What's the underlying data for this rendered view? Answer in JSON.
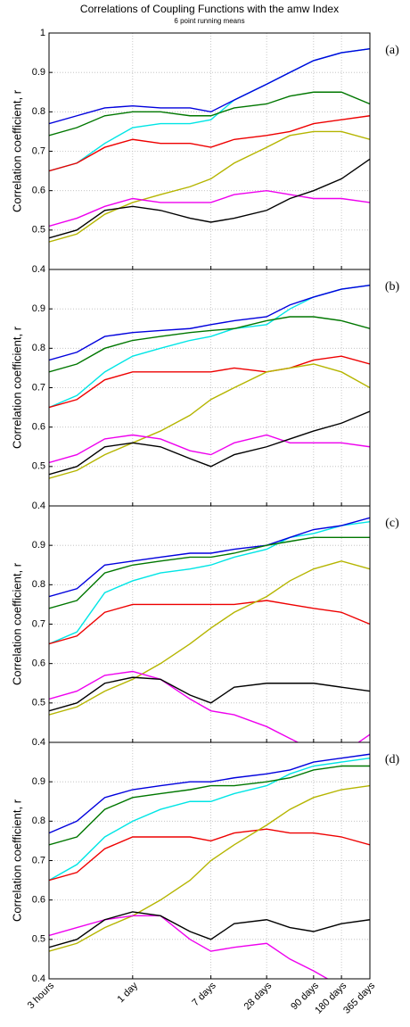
{
  "chart_data": [
    {
      "type": "line",
      "title": "Correlations of Coupling Functions with the amw Index",
      "subtitle": "6 point running means",
      "panel_label": "(a)",
      "ylabel": "Correlation coefficient, r",
      "log_x": true,
      "grid": true,
      "xlim": [
        3,
        8760
      ],
      "xticks": [
        3,
        24,
        168,
        672,
        2160,
        4320,
        8760
      ],
      "ylim": [
        0.4,
        1
      ],
      "yticks": [
        0.4,
        0.5,
        0.6,
        0.7,
        0.8,
        0.9,
        1
      ],
      "x": [
        3,
        6,
        12,
        24,
        48,
        100,
        168,
        300,
        672,
        1200,
        2160,
        4320,
        8760
      ],
      "series": [
        {
          "color": "#00e5e5",
          "values": [
            0.65,
            0.67,
            0.72,
            0.76,
            0.77,
            0.77,
            0.78,
            0.83,
            0.87,
            0.9,
            0.93,
            0.95,
            0.96
          ]
        },
        {
          "color": "#0000dd",
          "values": [
            0.77,
            0.79,
            0.81,
            0.815,
            0.81,
            0.81,
            0.8,
            0.83,
            0.87,
            0.9,
            0.93,
            0.95,
            0.96
          ]
        },
        {
          "color": "#007700",
          "values": [
            0.74,
            0.76,
            0.79,
            0.8,
            0.8,
            0.79,
            0.79,
            0.81,
            0.82,
            0.84,
            0.85,
            0.85,
            0.82
          ]
        },
        {
          "color": "#ee0000",
          "values": [
            0.65,
            0.67,
            0.71,
            0.73,
            0.72,
            0.72,
            0.71,
            0.73,
            0.74,
            0.75,
            0.77,
            0.78,
            0.79
          ]
        },
        {
          "color": "#b5b500",
          "values": [
            0.47,
            0.49,
            0.54,
            0.57,
            0.59,
            0.61,
            0.63,
            0.67,
            0.71,
            0.74,
            0.75,
            0.75,
            0.73
          ]
        },
        {
          "color": "#ee00ee",
          "values": [
            0.51,
            0.53,
            0.56,
            0.58,
            0.57,
            0.57,
            0.57,
            0.59,
            0.6,
            0.59,
            0.58,
            0.58,
            0.57
          ]
        },
        {
          "color": "#000000",
          "values": [
            0.48,
            0.5,
            0.55,
            0.56,
            0.55,
            0.53,
            0.52,
            0.53,
            0.55,
            0.58,
            0.6,
            0.63,
            0.68
          ]
        }
      ]
    },
    {
      "type": "line",
      "panel_label": "(b)",
      "ylabel": "Correlation coefficient, r",
      "log_x": true,
      "grid": true,
      "xlim": [
        3,
        8760
      ],
      "xticks": [
        3,
        24,
        168,
        672,
        2160,
        4320,
        8760
      ],
      "ylim": [
        0.4,
        1
      ],
      "yticks": [
        0.4,
        0.5,
        0.6,
        0.7,
        0.8,
        0.9
      ],
      "x": [
        3,
        6,
        12,
        24,
        48,
        100,
        168,
        300,
        672,
        1200,
        2160,
        4320,
        8760
      ],
      "series": [
        {
          "color": "#00e5e5",
          "values": [
            0.65,
            0.68,
            0.74,
            0.78,
            0.8,
            0.82,
            0.83,
            0.85,
            0.86,
            0.9,
            0.93,
            0.95,
            0.96
          ]
        },
        {
          "color": "#0000dd",
          "values": [
            0.77,
            0.79,
            0.83,
            0.84,
            0.845,
            0.85,
            0.86,
            0.87,
            0.88,
            0.91,
            0.93,
            0.95,
            0.96
          ]
        },
        {
          "color": "#007700",
          "values": [
            0.74,
            0.76,
            0.8,
            0.82,
            0.83,
            0.84,
            0.845,
            0.85,
            0.87,
            0.88,
            0.88,
            0.87,
            0.85
          ]
        },
        {
          "color": "#ee0000",
          "values": [
            0.65,
            0.67,
            0.72,
            0.74,
            0.74,
            0.74,
            0.74,
            0.75,
            0.74,
            0.75,
            0.77,
            0.78,
            0.76
          ]
        },
        {
          "color": "#b5b500",
          "values": [
            0.47,
            0.49,
            0.53,
            0.56,
            0.59,
            0.63,
            0.67,
            0.7,
            0.74,
            0.75,
            0.76,
            0.74,
            0.7
          ]
        },
        {
          "color": "#ee00ee",
          "values": [
            0.51,
            0.53,
            0.57,
            0.58,
            0.57,
            0.54,
            0.53,
            0.56,
            0.58,
            0.56,
            0.56,
            0.56,
            0.55
          ]
        },
        {
          "color": "#000000",
          "values": [
            0.48,
            0.5,
            0.55,
            0.56,
            0.55,
            0.52,
            0.5,
            0.53,
            0.55,
            0.57,
            0.59,
            0.61,
            0.64
          ]
        }
      ]
    },
    {
      "type": "line",
      "panel_label": "(c)",
      "ylabel": "Correlation coefficient, r",
      "log_x": true,
      "grid": true,
      "xlim": [
        3,
        8760
      ],
      "xticks": [
        3,
        24,
        168,
        672,
        2160,
        4320,
        8760
      ],
      "ylim": [
        0.4,
        1
      ],
      "yticks": [
        0.4,
        0.5,
        0.6,
        0.7,
        0.8,
        0.9
      ],
      "x": [
        3,
        6,
        12,
        24,
        48,
        100,
        168,
        300,
        672,
        1200,
        2160,
        4320,
        8760
      ],
      "series": [
        {
          "color": "#00e5e5",
          "values": [
            0.65,
            0.68,
            0.78,
            0.81,
            0.83,
            0.84,
            0.85,
            0.87,
            0.89,
            0.92,
            0.93,
            0.95,
            0.96
          ]
        },
        {
          "color": "#0000dd",
          "values": [
            0.77,
            0.79,
            0.85,
            0.86,
            0.87,
            0.88,
            0.88,
            0.89,
            0.9,
            0.92,
            0.94,
            0.95,
            0.97
          ]
        },
        {
          "color": "#007700",
          "values": [
            0.74,
            0.76,
            0.83,
            0.85,
            0.86,
            0.87,
            0.87,
            0.88,
            0.9,
            0.91,
            0.92,
            0.92,
            0.92
          ]
        },
        {
          "color": "#ee0000",
          "values": [
            0.65,
            0.67,
            0.73,
            0.75,
            0.75,
            0.75,
            0.75,
            0.75,
            0.76,
            0.75,
            0.74,
            0.73,
            0.7
          ]
        },
        {
          "color": "#b5b500",
          "values": [
            0.47,
            0.49,
            0.53,
            0.56,
            0.6,
            0.65,
            0.69,
            0.73,
            0.77,
            0.81,
            0.84,
            0.86,
            0.84
          ]
        },
        {
          "color": "#ee00ee",
          "values": [
            0.51,
            0.53,
            0.57,
            0.58,
            0.56,
            0.51,
            0.48,
            0.47,
            0.44,
            0.41,
            0.38,
            0.37,
            0.42
          ]
        },
        {
          "color": "#000000",
          "values": [
            0.48,
            0.5,
            0.55,
            0.565,
            0.56,
            0.52,
            0.5,
            0.54,
            0.55,
            0.55,
            0.55,
            0.54,
            0.53
          ]
        }
      ]
    },
    {
      "type": "line",
      "panel_label": "(d)",
      "ylabel": "Correlation coefficient, r",
      "log_x": true,
      "grid": true,
      "xlim": [
        3,
        8760
      ],
      "xticks": [
        {
          "value": 3,
          "label": "3 hours"
        },
        {
          "value": 24,
          "label": "1 day"
        },
        {
          "value": 168,
          "label": "7 days"
        },
        {
          "value": 672,
          "label": "28 days"
        },
        {
          "value": 2160,
          "label": "90 days"
        },
        {
          "value": 4320,
          "label": "180 days"
        },
        {
          "value": 8760,
          "label": "365 days"
        }
      ],
      "ylim": [
        0.4,
        1
      ],
      "yticks": [
        0.4,
        0.5,
        0.6,
        0.7,
        0.8,
        0.9
      ],
      "x": [
        3,
        6,
        12,
        24,
        48,
        100,
        168,
        300,
        672,
        1200,
        2160,
        4320,
        8760
      ],
      "series": [
        {
          "color": "#00e5e5",
          "values": [
            0.65,
            0.69,
            0.76,
            0.8,
            0.83,
            0.85,
            0.85,
            0.87,
            0.89,
            0.92,
            0.94,
            0.95,
            0.96
          ]
        },
        {
          "color": "#0000dd",
          "values": [
            0.77,
            0.8,
            0.86,
            0.88,
            0.89,
            0.9,
            0.9,
            0.91,
            0.92,
            0.93,
            0.95,
            0.96,
            0.97
          ]
        },
        {
          "color": "#007700",
          "values": [
            0.74,
            0.76,
            0.83,
            0.86,
            0.87,
            0.88,
            0.89,
            0.89,
            0.9,
            0.91,
            0.93,
            0.94,
            0.94
          ]
        },
        {
          "color": "#ee0000",
          "values": [
            0.65,
            0.67,
            0.73,
            0.76,
            0.76,
            0.76,
            0.75,
            0.77,
            0.78,
            0.77,
            0.77,
            0.76,
            0.74
          ]
        },
        {
          "color": "#b5b500",
          "values": [
            0.47,
            0.49,
            0.53,
            0.56,
            0.6,
            0.65,
            0.7,
            0.74,
            0.79,
            0.83,
            0.86,
            0.88,
            0.89
          ]
        },
        {
          "color": "#ee00ee",
          "values": [
            0.51,
            0.53,
            0.55,
            0.56,
            0.56,
            0.5,
            0.47,
            0.48,
            0.49,
            0.45,
            0.42,
            0.38,
            0.4
          ]
        },
        {
          "color": "#000000",
          "values": [
            0.48,
            0.5,
            0.55,
            0.57,
            0.56,
            0.52,
            0.5,
            0.54,
            0.55,
            0.53,
            0.52,
            0.54,
            0.55
          ]
        }
      ]
    }
  ]
}
